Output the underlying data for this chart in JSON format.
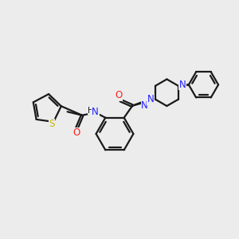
{
  "background_color": "#ececec",
  "bond_color": "#1a1a1a",
  "S_color": "#c8b400",
  "N_color": "#2020ff",
  "O_color": "#ff2020",
  "line_width": 1.6,
  "figsize": [
    3.0,
    3.0
  ],
  "dpi": 100,
  "xlim": [
    0,
    10
  ],
  "ylim": [
    0,
    10
  ]
}
